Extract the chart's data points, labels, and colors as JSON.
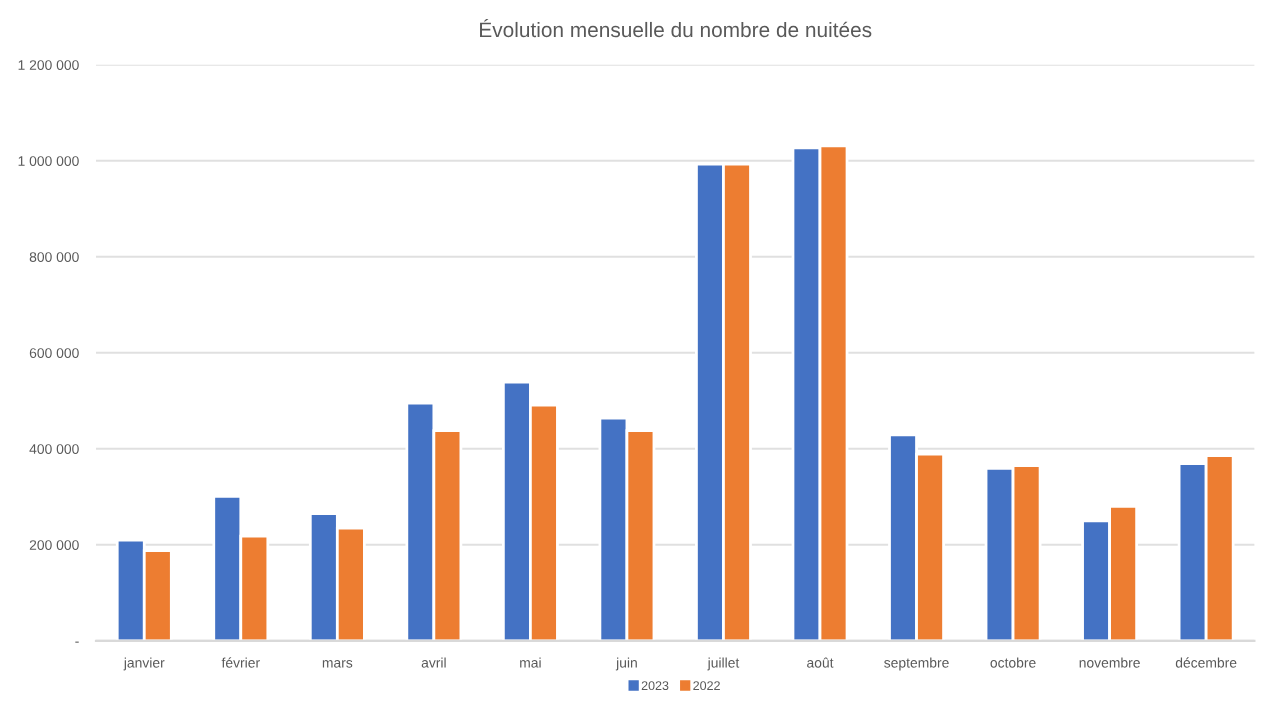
{
  "chart_data": {
    "type": "bar",
    "title": "Évolution mensuelle du nombre de nuitées",
    "categories": [
      "janvier",
      "février",
      "mars",
      "avril",
      "mai",
      "juin",
      "juillet",
      "août",
      "septembre",
      "octobre",
      "novembre",
      "décembre"
    ],
    "series": [
      {
        "name": "2023",
        "color": "#4472c4",
        "values": [
          210000,
          301000,
          265000,
          495000,
          539000,
          464000,
          993000,
          1027000,
          429000,
          359000,
          250000,
          369000
        ]
      },
      {
        "name": "2022",
        "color": "#ed7d31",
        "values": [
          188000,
          218000,
          235000,
          438000,
          491000,
          438000,
          993000,
          1031000,
          389000,
          365000,
          280000,
          386000
        ]
      }
    ],
    "ylim": [
      0,
      1200000
    ],
    "yticks": [
      {
        "value": 0,
        "label": "-"
      },
      {
        "value": 200000,
        "label": "200 000"
      },
      {
        "value": 400000,
        "label": "400 000"
      },
      {
        "value": 600000,
        "label": "600 000"
      },
      {
        "value": 800000,
        "label": "800 000"
      },
      {
        "value": 1000000,
        "label": "1 000 000"
      },
      {
        "value": 1200000,
        "label": "1 200 000"
      }
    ],
    "grid": "y",
    "legend": "bottom"
  }
}
